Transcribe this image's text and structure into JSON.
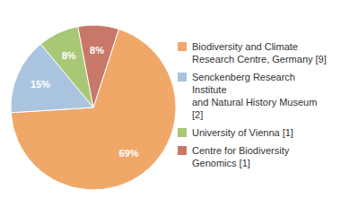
{
  "chart_data": {
    "type": "pie",
    "categories": [
      "Biodiversity and Climate\nResearch Centre, Germany [9]",
      "Senckenberg Research Institute\nand Natural History Museum [2]",
      "University of Vienna [1]",
      "Centre for Biodiversity\nGenomics [1]"
    ],
    "values": [
      69,
      15,
      8,
      8
    ],
    "value_labels": [
      "69%",
      "15%",
      "8%",
      "8%"
    ],
    "colors": [
      "#f0a868",
      "#aac4e0",
      "#a8c878",
      "#c87868"
    ],
    "data_labels": true,
    "legend": "right"
  }
}
